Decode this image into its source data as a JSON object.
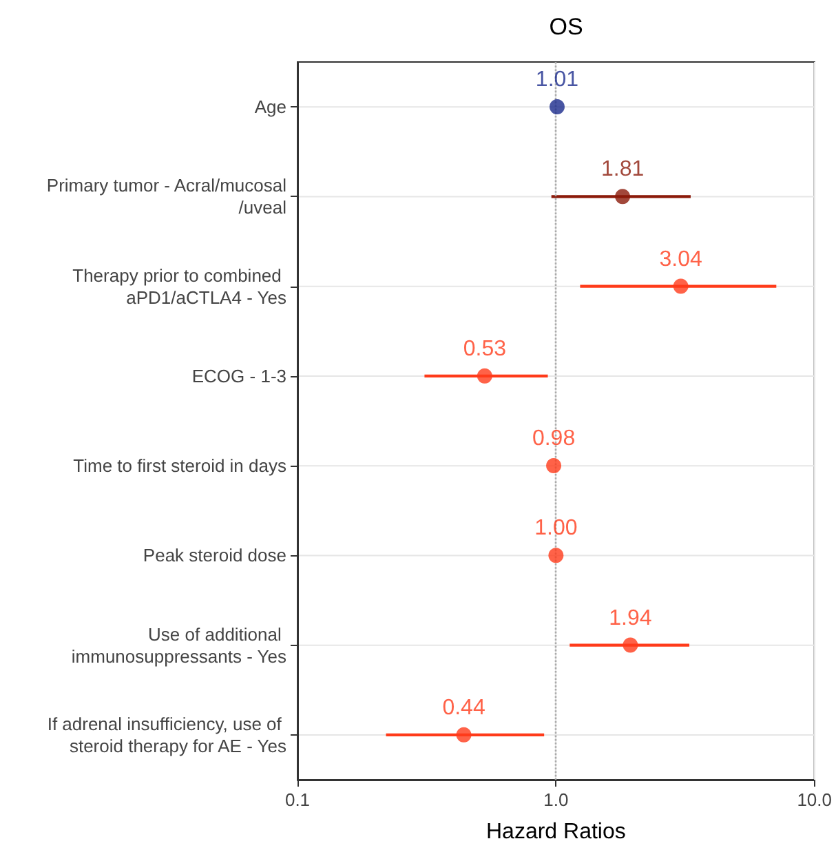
{
  "chart_data": {
    "type": "scatter",
    "title": "OS",
    "xlabel": "Hazard Ratios",
    "orientation": "horizontal",
    "categories": [
      "Age",
      "Primary tumor - Acral/mucosal/uveal",
      "Therapy prior to combined aPD1/aCTLA4 - Yes",
      "ECOG - 1-3",
      "Time to first steroid in days",
      "Peak steroid dose",
      "Use of additional immunosuppressants - Yes",
      "If adrenal insufficiency, use of steroid therapy for AE - Yes"
    ],
    "values": [
      1.01,
      1.81,
      3.04,
      0.53,
      0.98,
      1.0,
      1.94,
      0.44
    ],
    "value_labels": [
      "1.01",
      "1.81",
      "3.04",
      "0.53",
      "0.98",
      "1.00",
      "1.94",
      "0.44"
    ],
    "errors": [
      null,
      [
        0.96,
        3.32
      ],
      [
        1.24,
        7.12
      ],
      [
        0.31,
        0.93
      ],
      null,
      null,
      [
        1.13,
        3.28
      ],
      [
        0.22,
        0.9
      ]
    ],
    "colors": [
      "#1a2a8c",
      "#8b1a0a",
      "#ff3b1a",
      "#ff3b1a",
      "#ff3b1a",
      "#ff3b1a",
      "#ff3b1a",
      "#ff3b1a"
    ],
    "log": "x",
    "xlim": [
      0.1,
      10
    ],
    "xticks": [
      0.1,
      {
        "value": 1,
        "label": "1.0"
      },
      {
        "value": 10,
        "label": "10.0"
      }
    ],
    "grid": true,
    "marker": "circle",
    "ref_lines": [
      {
        "axis": "x",
        "value": 1,
        "color": "#aaaaaa",
        "line_style": "dotted"
      }
    ]
  }
}
